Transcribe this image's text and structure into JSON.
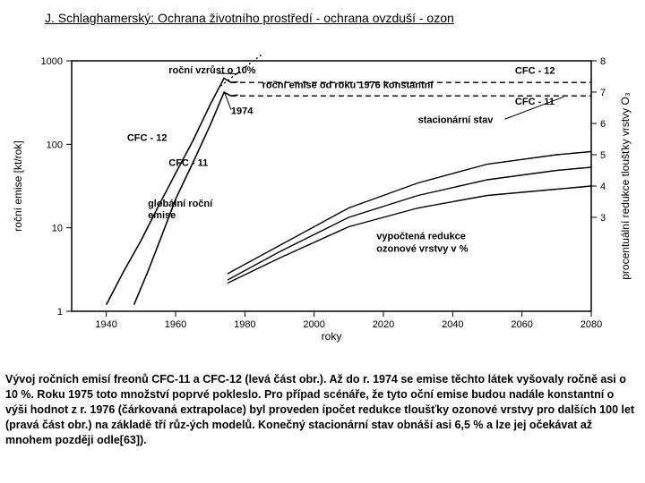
{
  "title": "J. Schlaghamerský: Ochrana životního prostředí - ochrana ovzduší - ozon",
  "chart": {
    "type": "line",
    "background_color": "#ffffff",
    "axis_color": "#000000",
    "line_color": "#000000",
    "line_width": 1.6,
    "dash_pattern": "6,4",
    "dot_pattern": "2,3",
    "x": {
      "label": "roky",
      "min": 1930,
      "max": 2080,
      "ticks": [
        1940,
        1960,
        1980,
        2000,
        2020,
        2040,
        2060,
        2080
      ],
      "label_fontsize": 12
    },
    "y_left": {
      "label": "roční emise [kt/rok]",
      "scale": "log",
      "min": 1,
      "max": 1000,
      "ticks": [
        1,
        10,
        100,
        1000
      ],
      "label_fontsize": 12
    },
    "y_right": {
      "label": "procentuální redukce tloušťky vrstvy O₃",
      "min": 0,
      "max": 8,
      "ticks": [
        3,
        4,
        5,
        6,
        7,
        8
      ],
      "label_fontsize": 12
    },
    "annotations": {
      "growth": "roční vzrůst o 10%",
      "const_1976": "roční emise od roku 1976 konstantní",
      "year1974": "1974",
      "cfc12": "CFC - 12",
      "cfc11": "CFC - 11",
      "cfc12_right": "CFC - 12",
      "cfc11_right": "CFC - 11",
      "global": "globální roční emise",
      "stationary": "stacionární stav",
      "reduction": "vypočtená redukce ozonové vrstvy v %"
    },
    "series": {
      "cfc12_emis": [
        [
          1940,
          1.2
        ],
        [
          1945,
          3
        ],
        [
          1950,
          7
        ],
        [
          1955,
          18
        ],
        [
          1960,
          45
        ],
        [
          1965,
          110
        ],
        [
          1970,
          300
        ],
        [
          1974,
          620
        ],
        [
          1976,
          550
        ],
        [
          1978,
          560
        ]
      ],
      "cfc11_emis": [
        [
          1948,
          1.2
        ],
        [
          1952,
          3
        ],
        [
          1956,
          8
        ],
        [
          1960,
          22
        ],
        [
          1965,
          60
        ],
        [
          1970,
          170
        ],
        [
          1974,
          420
        ],
        [
          1976,
          380
        ],
        [
          1978,
          390
        ]
      ],
      "cfc12_extrap_dash": [
        [
          1976,
          550
        ],
        [
          2080,
          550
        ]
      ],
      "cfc11_extrap_dash": [
        [
          1976,
          380
        ],
        [
          2080,
          380
        ]
      ],
      "growth_dots": [
        [
          1973,
          500
        ],
        [
          1985,
          1200
        ]
      ],
      "reduction_upper": [
        [
          1975,
          1.2
        ],
        [
          1990,
          2.1
        ],
        [
          2010,
          3.3
        ],
        [
          2030,
          4.1
        ],
        [
          2050,
          4.7
        ],
        [
          2070,
          5.0
        ],
        [
          2080,
          5.1
        ]
      ],
      "reduction_mid": [
        [
          1975,
          1.0
        ],
        [
          1990,
          1.9
        ],
        [
          2010,
          3.0
        ],
        [
          2030,
          3.7
        ],
        [
          2050,
          4.2
        ],
        [
          2070,
          4.5
        ],
        [
          2080,
          4.6
        ]
      ],
      "reduction_lower": [
        [
          1975,
          0.9
        ],
        [
          1990,
          1.7
        ],
        [
          2010,
          2.7
        ],
        [
          2030,
          3.3
        ],
        [
          2050,
          3.7
        ],
        [
          2070,
          3.9
        ],
        [
          2080,
          4.0
        ]
      ]
    }
  },
  "caption": "Vývoj ročních emisí freonů CFC-11 a CFC-12 (levá část obr.). Až do r. 1974 se emise těchto látek vyšovaly ročně asi o 10 %. Roku 1975 toto množství poprvé pokleslo. Pro případ scénáře, že tyto oční emise budou nadále konstantní o výši hodnot z r. 1976 (čárkovaná extrapolace) byl proveden ípočet redukce tloušťky ozonové vrstvy pro dalších 100 let (pravá část obr.) na základě tří růz-ých modelů. Konečný stacionární stav obnáší asi 6,5 % a lze jej očekávat až mnohem později odle[63])."
}
